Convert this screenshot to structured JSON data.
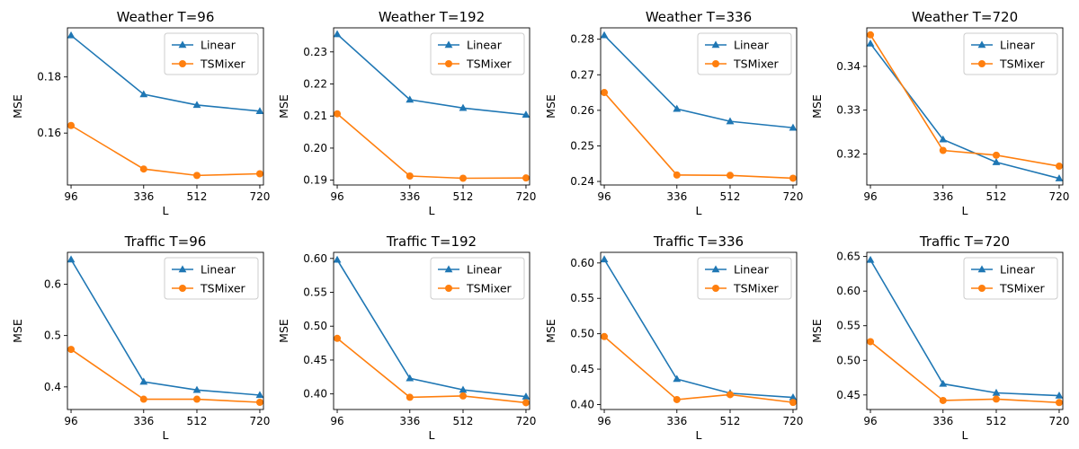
{
  "chart_data": [
    {
      "type": "line",
      "title": "Weather T=96",
      "xlabel": "L",
      "ylabel": "MSE",
      "x": [
        96,
        336,
        512,
        720
      ],
      "xticks": [
        "96",
        "336",
        "512",
        "720"
      ],
      "ylim": [
        0.1415,
        0.1975
      ],
      "yticks": [
        "0.16",
        "0.18"
      ],
      "ytick_values": [
        0.16,
        0.18
      ],
      "legend_position": "top-right",
      "series": [
        {
          "name": "Linear",
          "values": [
            0.1948,
            0.1738,
            0.17,
            0.1678
          ]
        },
        {
          "name": "TSMixer",
          "values": [
            0.1627,
            0.1472,
            0.1449,
            0.1455
          ]
        }
      ]
    },
    {
      "type": "line",
      "title": "Weather T=192",
      "xlabel": "L",
      "ylabel": "MSE",
      "x": [
        96,
        336,
        512,
        720
      ],
      "xticks": [
        "96",
        "336",
        "512",
        "720"
      ],
      "ylim": [
        0.1885,
        0.2375
      ],
      "yticks": [
        "0.19",
        "0.20",
        "0.21",
        "0.22",
        "0.23"
      ],
      "ytick_values": [
        0.19,
        0.2,
        0.21,
        0.22,
        0.23
      ],
      "legend_position": "top-right",
      "series": [
        {
          "name": "Linear",
          "values": [
            0.2355,
            0.2151,
            0.2125,
            0.2104
          ]
        },
        {
          "name": "TSMixer",
          "values": [
            0.2107,
            0.1913,
            0.1906,
            0.1907
          ]
        }
      ]
    },
    {
      "type": "line",
      "title": "Weather T=336",
      "xlabel": "L",
      "ylabel": "MSE",
      "x": [
        96,
        336,
        512,
        720
      ],
      "xticks": [
        "96",
        "336",
        "512",
        "720"
      ],
      "ylim": [
        0.239,
        0.2832
      ],
      "yticks": [
        "0.24",
        "0.25",
        "0.26",
        "0.27",
        "0.28"
      ],
      "ytick_values": [
        0.24,
        0.25,
        0.26,
        0.27,
        0.28
      ],
      "legend_position": "top-right",
      "series": [
        {
          "name": "Linear",
          "values": [
            0.2811,
            0.2604,
            0.2569,
            0.2551
          ]
        },
        {
          "name": "TSMixer",
          "values": [
            0.265,
            0.2418,
            0.2417,
            0.2409
          ]
        }
      ]
    },
    {
      "type": "line",
      "title": "Weather T=720",
      "xlabel": "L",
      "ylabel": "MSE",
      "x": [
        96,
        336,
        512,
        720
      ],
      "xticks": [
        "96",
        "336",
        "512",
        "720"
      ],
      "ylim": [
        0.3129,
        0.3488
      ],
      "yticks": [
        "0.32",
        "0.33",
        "0.34"
      ],
      "ytick_values": [
        0.32,
        0.33,
        0.34
      ],
      "legend_position": "top-right",
      "series": [
        {
          "name": "Linear",
          "values": [
            0.3452,
            0.3233,
            0.3181,
            0.3144
          ]
        },
        {
          "name": "TSMixer",
          "values": [
            0.3472,
            0.3208,
            0.3197,
            0.3172
          ]
        }
      ]
    },
    {
      "type": "line",
      "title": "Traffic T=96",
      "xlabel": "L",
      "ylabel": "MSE",
      "x": [
        96,
        336,
        512,
        720
      ],
      "xticks": [
        "96",
        "336",
        "512",
        "720"
      ],
      "ylim": [
        0.356,
        0.662
      ],
      "yticks": [
        "0.4",
        "0.5",
        "0.6"
      ],
      "ytick_values": [
        0.4,
        0.5,
        0.6
      ],
      "legend_position": "top-right",
      "series": [
        {
          "name": "Linear",
          "values": [
            0.648,
            0.41,
            0.394,
            0.384
          ]
        },
        {
          "name": "TSMixer",
          "values": [
            0.473,
            0.376,
            0.376,
            0.37
          ]
        }
      ]
    },
    {
      "type": "line",
      "title": "Traffic T=192",
      "xlabel": "L",
      "ylabel": "MSE",
      "x": [
        96,
        336,
        512,
        720
      ],
      "xticks": [
        "96",
        "336",
        "512",
        "720"
      ],
      "ylim": [
        0.377,
        0.609
      ],
      "yticks": [
        "0.40",
        "0.45",
        "0.50",
        "0.55",
        "0.60"
      ],
      "ytick_values": [
        0.4,
        0.45,
        0.5,
        0.55,
        0.6
      ],
      "legend_position": "top-right",
      "series": [
        {
          "name": "Linear",
          "values": [
            0.598,
            0.423,
            0.406,
            0.396
          ]
        },
        {
          "name": "TSMixer",
          "values": [
            0.482,
            0.395,
            0.397,
            0.387
          ]
        }
      ]
    },
    {
      "type": "line",
      "title": "Traffic T=336",
      "xlabel": "L",
      "ylabel": "MSE",
      "x": [
        96,
        336,
        512,
        720
      ],
      "xticks": [
        "96",
        "336",
        "512",
        "720"
      ],
      "ylim": [
        0.393,
        0.615
      ],
      "yticks": [
        "0.40",
        "0.45",
        "0.50",
        "0.55",
        "0.60"
      ],
      "ytick_values": [
        0.4,
        0.45,
        0.5,
        0.55,
        0.6
      ],
      "legend_position": "top-right",
      "series": [
        {
          "name": "Linear",
          "values": [
            0.605,
            0.436,
            0.416,
            0.41
          ]
        },
        {
          "name": "TSMixer",
          "values": [
            0.496,
            0.407,
            0.414,
            0.403
          ]
        }
      ]
    },
    {
      "type": "line",
      "title": "Traffic T=720",
      "xlabel": "L",
      "ylabel": "MSE",
      "x": [
        96,
        336,
        512,
        720
      ],
      "xticks": [
        "96",
        "336",
        "512",
        "720"
      ],
      "ylim": [
        0.429,
        0.656
      ],
      "yticks": [
        "0.45",
        "0.50",
        "0.55",
        "0.60",
        "0.65"
      ],
      "ytick_values": [
        0.45,
        0.5,
        0.55,
        0.6,
        0.65
      ],
      "legend_position": "top-right",
      "series": [
        {
          "name": "Linear",
          "values": [
            0.645,
            0.466,
            0.453,
            0.449
          ]
        },
        {
          "name": "TSMixer",
          "values": [
            0.527,
            0.442,
            0.444,
            0.439
          ]
        }
      ]
    }
  ],
  "colors": {
    "Linear": "#1f77b4",
    "TSMixer": "#ff7f0e"
  },
  "markers": {
    "Linear": "triangle",
    "TSMixer": "circle"
  }
}
